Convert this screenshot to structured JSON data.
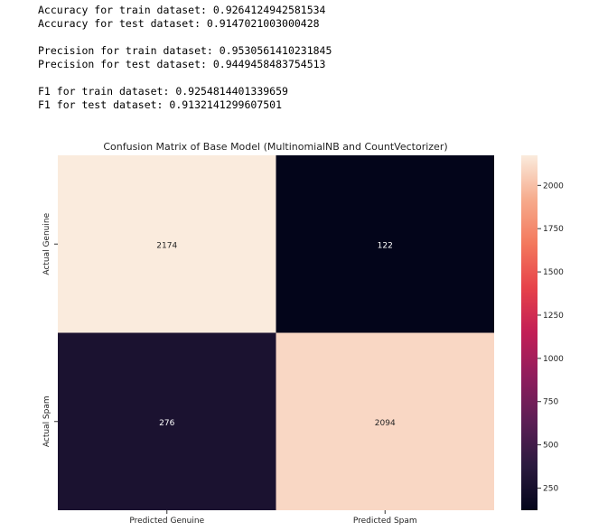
{
  "output": {
    "groups": [
      [
        "Accuracy for train dataset: 0.9264124942581534",
        "Accuracy for test dataset: 0.9147021003000428"
      ],
      [
        "Precision for train dataset: 0.9530561410231845",
        "Precision for test dataset: 0.9449458483754513"
      ],
      [
        "F1 for train dataset: 0.9254814401339659",
        "F1 for test dataset: 0.9132141299607501"
      ]
    ]
  },
  "chart_data": {
    "type": "heatmap",
    "title": "Confusion Matrix of Base Model (MultinomialNB and CountVectorizer)",
    "row_labels": [
      "Actual Genuine",
      "Actual Spam"
    ],
    "col_labels": [
      "Predicted Genuine",
      "Predicted Spam"
    ],
    "values": [
      [
        2174,
        122
      ],
      [
        276,
        2094
      ]
    ],
    "colormap": "rocket",
    "colorbar": {
      "range": [
        122,
        2174
      ],
      "ticks": [
        250,
        500,
        750,
        1000,
        1250,
        1500,
        1750,
        2000
      ]
    },
    "grid": false
  }
}
